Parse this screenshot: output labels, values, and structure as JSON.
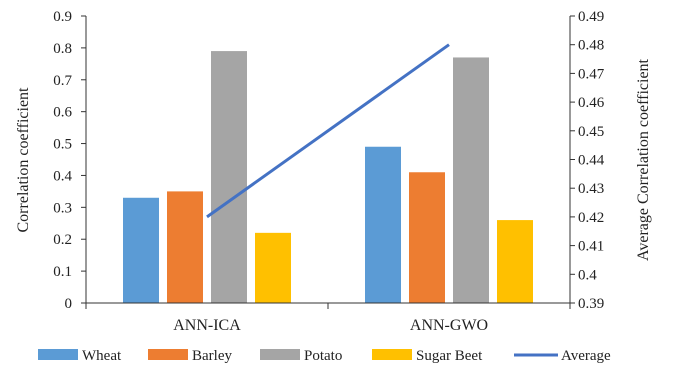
{
  "chart_data": {
    "type": "bar",
    "categories": [
      "ANN-ICA",
      "ANN-GWO"
    ],
    "series": [
      {
        "name": "Wheat",
        "values": [
          0.33,
          0.49
        ],
        "color": "#5b9bd5"
      },
      {
        "name": "Barley",
        "values": [
          0.35,
          0.41
        ],
        "color": "#ed7d31"
      },
      {
        "name": "Potato",
        "values": [
          0.79,
          0.77
        ],
        "color": "#a5a5a5"
      },
      {
        "name": "Sugar Beet",
        "values": [
          0.22,
          0.26
        ],
        "color": "#ffc000"
      }
    ],
    "line_series": {
      "name": "Average",
      "values": [
        0.42,
        0.48
      ],
      "color": "#4472c4",
      "axis": "secondary"
    },
    "ylabel": "Correlation coefficient",
    "y2label": "Average Correlation coefficient",
    "ylim": [
      0,
      0.9
    ],
    "y2lim": [
      0.39,
      0.49
    ],
    "yticks": [
      "0",
      "0.1",
      "0.2",
      "0.3",
      "0.4",
      "0.5",
      "0.6",
      "0.7",
      "0.8",
      "0.9"
    ],
    "y2ticks": [
      "0.39",
      "0.4",
      "0.41",
      "0.42",
      "0.43",
      "0.44",
      "0.45",
      "0.46",
      "0.47",
      "0.48",
      "0.49"
    ],
    "grid": false,
    "legend": "bottom"
  }
}
